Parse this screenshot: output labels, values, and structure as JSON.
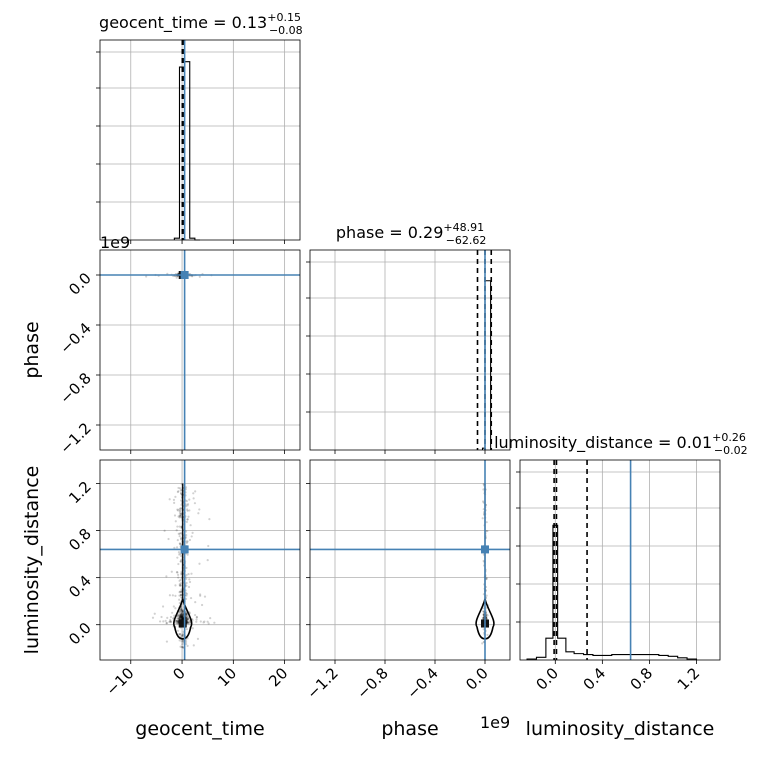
{
  "chart_data": {
    "type": "corner",
    "parameters": [
      "geocent_time",
      "phase",
      "luminosity_distance"
    ],
    "labels": {
      "geocent_time": "geocent_time",
      "phase": "phase",
      "luminosity_distance": "luminosity_distance"
    },
    "ranges": {
      "geocent_time": [
        -16,
        23
      ],
      "phase": [
        -1400000000.0,
        200000000.0
      ],
      "luminosity_distance": [
        -0.3,
        1.4
      ]
    },
    "ticks": {
      "geocent_time": [
        -10,
        0,
        10,
        20
      ],
      "phase": [
        -1200000000.0,
        -800000000.0,
        -400000000.0,
        0.0
      ],
      "luminosity_distance": [
        0.0,
        0.4,
        0.8,
        1.2
      ]
    },
    "tick_labels": {
      "geocent_time": [
        "−10",
        "0",
        "10",
        "20"
      ],
      "phase": [
        "−1.2",
        "−0.8",
        "−0.4",
        "0.0"
      ],
      "luminosity_distance": [
        "0.0",
        "0.4",
        "0.8",
        "1.2"
      ]
    },
    "offset_text": "1e9",
    "titles": {
      "geocent_time": {
        "name": "geocent_time = ",
        "median": "0.13",
        "plus": "+0.15",
        "minus": "−0.08"
      },
      "phase": {
        "name": "phase = ",
        "median": "0.29",
        "plus": "+48.91",
        "minus": "−62.62"
      },
      "luminosity_distance": {
        "name": "luminosity_distance = ",
        "median": "0.01",
        "plus": "+0.26",
        "minus": "−0.02"
      }
    },
    "truths": {
      "geocent_time": 0.5,
      "phase": 0.0,
      "luminosity_distance": 0.64
    },
    "quantiles": {
      "geocent_time": [
        0.05,
        0.13,
        0.28
      ],
      "phase": [
        -60000000.0,
        0.0,
        50000000.0
      ],
      "luminosity_distance": [
        -0.01,
        0.01,
        0.27
      ]
    },
    "histograms": {
      "geocent_time": {
        "edges": [
          -1.5,
          -0.5,
          0.5,
          1.5,
          2.5,
          3.5
        ],
        "counts": [
          0.01,
          0.95,
          0.98,
          0.01,
          0.0
        ]
      },
      "phase": {
        "edges": [
          -20000000.0,
          0.0,
          45000000.0
        ],
        "counts": [
          0.01,
          0.93
        ]
      },
      "luminosity_distance": {
        "edges": [
          -0.24,
          -0.16,
          -0.08,
          -0.02,
          0.02,
          0.09,
          0.16,
          0.24,
          0.32,
          0.4,
          0.48,
          0.56,
          0.64,
          0.72,
          0.8,
          0.88,
          0.96,
          1.04,
          1.12,
          1.2
        ],
        "counts": [
          0.005,
          0.015,
          0.12,
          0.74,
          0.12,
          0.045,
          0.035,
          0.03,
          0.025,
          0.025,
          0.03,
          0.03,
          0.03,
          0.03,
          0.03,
          0.025,
          0.02,
          0.012,
          0.005
        ]
      }
    },
    "grid": true
  }
}
